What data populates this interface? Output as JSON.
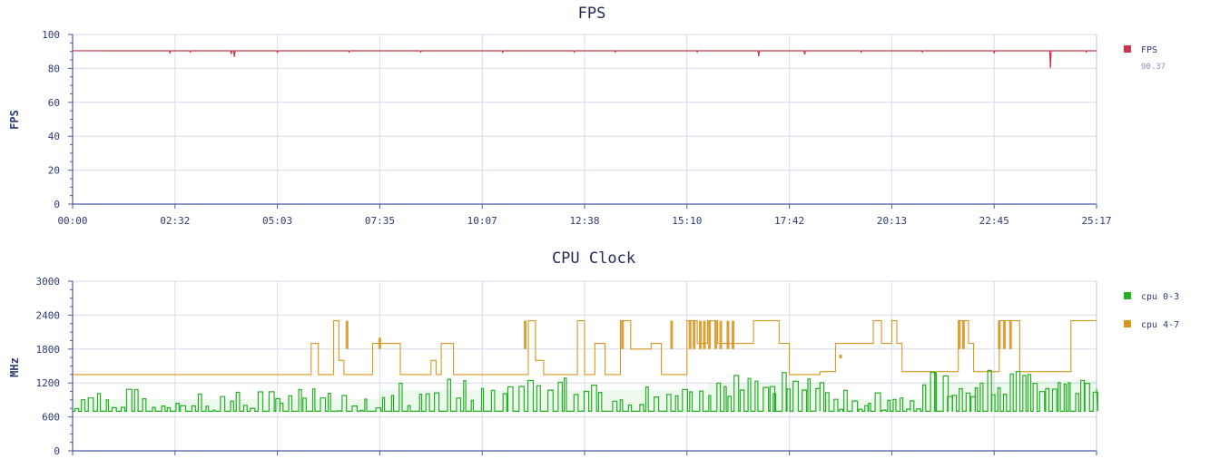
{
  "chart_data": [
    {
      "type": "line",
      "title": "FPS",
      "xlabel": "",
      "ylabel": "FPS",
      "ylim": [
        0,
        100
      ],
      "yticks": [
        0,
        20,
        40,
        60,
        80,
        100
      ],
      "xticks": [
        "00:00",
        "02:32",
        "05:03",
        "07:35",
        "10:07",
        "12:38",
        "15:10",
        "17:42",
        "20:13",
        "22:45",
        "25:17"
      ],
      "grid": true,
      "legend_position": "right",
      "series": [
        {
          "name": "FPS",
          "color": "#c8364a",
          "legend_value": "90.37",
          "baseline": 90.4,
          "dips": [
            [
              0.095,
              89.2
            ],
            [
              0.115,
              89.6
            ],
            [
              0.155,
              88.5
            ],
            [
              0.158,
              86.8
            ],
            [
              0.2,
              89.4
            ],
            [
              0.27,
              89.6
            ],
            [
              0.34,
              89.7
            ],
            [
              0.42,
              89.5
            ],
            [
              0.49,
              89.6
            ],
            [
              0.53,
              89.6
            ],
            [
              0.61,
              89.7
            ],
            [
              0.67,
              87.2
            ],
            [
              0.715,
              88.2
            ],
            [
              0.77,
              89.6
            ],
            [
              0.83,
              89.6
            ],
            [
              0.9,
              89.3
            ],
            [
              0.955,
              80.2
            ],
            [
              0.99,
              89.7
            ]
          ]
        }
      ]
    },
    {
      "type": "line",
      "title": "CPU Clock",
      "xlabel": "",
      "ylabel": "MHz",
      "ylim": [
        0,
        3000
      ],
      "yticks": [
        0,
        600,
        1200,
        1800,
        2400,
        3000
      ],
      "grid": true,
      "legend_position": "right",
      "series": [
        {
          "name": "cpu 0-3",
          "color": "#23b023",
          "base": 700,
          "segments": [
            [
              0.0,
              0.3,
              700,
              1100,
              40
            ],
            [
              0.3,
              0.62,
              800,
              1300,
              36
            ],
            [
              0.62,
              0.735,
              950,
              1400,
              18
            ],
            [
              0.735,
              0.83,
              700,
              1100,
              16
            ],
            [
              0.83,
              0.92,
              950,
              1450,
              16
            ],
            [
              0.92,
              1.0,
              1000,
              1450,
              14
            ]
          ]
        },
        {
          "name": "cpu 4-7",
          "color": "#d9961e",
          "steps": [
            [
              0.0,
              1350
            ],
            [
              0.23,
              1350
            ],
            [
              0.233,
              1900
            ],
            [
              0.24,
              1350
            ],
            [
              0.255,
              2300
            ],
            [
              0.26,
              1600
            ],
            [
              0.265,
              1350
            ],
            [
              0.29,
              1350
            ],
            [
              0.293,
              1900
            ],
            [
              0.315,
              1900
            ],
            [
              0.32,
              1350
            ],
            [
              0.345,
              1350
            ],
            [
              0.35,
              1600
            ],
            [
              0.355,
              1350
            ],
            [
              0.36,
              1900
            ],
            [
              0.372,
              1350
            ],
            [
              0.44,
              1350
            ],
            [
              0.445,
              2300
            ],
            [
              0.452,
              1600
            ],
            [
              0.46,
              1350
            ],
            [
              0.49,
              1350
            ],
            [
              0.493,
              2300
            ],
            [
              0.5,
              1350
            ],
            [
              0.51,
              1900
            ],
            [
              0.52,
              1350
            ],
            [
              0.53,
              1350
            ],
            [
              0.535,
              2300
            ],
            [
              0.545,
              1800
            ],
            [
              0.565,
              1900
            ],
            [
              0.575,
              1350
            ],
            [
              0.6,
              1350
            ],
            [
              0.6,
              2300
            ],
            [
              0.61,
              1900
            ],
            [
              0.62,
              2300
            ],
            [
              0.63,
              1900
            ],
            [
              0.66,
              1900
            ],
            [
              0.665,
              2300
            ],
            [
              0.69,
              1900
            ],
            [
              0.7,
              1350
            ],
            [
              0.725,
              1350
            ],
            [
              0.73,
              1400
            ],
            [
              0.745,
              1400
            ],
            [
              0.745,
              1900
            ],
            [
              0.78,
              1900
            ],
            [
              0.782,
              2300
            ],
            [
              0.79,
              1900
            ],
            [
              0.8,
              2300
            ],
            [
              0.805,
              1900
            ],
            [
              0.81,
              1400
            ],
            [
              0.86,
              1400
            ],
            [
              0.865,
              2300
            ],
            [
              0.875,
              1900
            ],
            [
              0.88,
              1400
            ],
            [
              0.9,
              1400
            ],
            [
              0.905,
              2300
            ],
            [
              0.92,
              2300
            ],
            [
              0.925,
              1400
            ],
            [
              0.97,
              1400
            ],
            [
              0.975,
              2300
            ],
            [
              1.0,
              2300
            ]
          ],
          "spikes": [
            [
              0.268,
              2300
            ],
            [
              0.3,
              2000
            ],
            [
              0.442,
              2300
            ],
            [
              0.537,
              2300
            ],
            [
              0.585,
              2300
            ],
            [
              0.603,
              2300
            ],
            [
              0.607,
              2300
            ],
            [
              0.613,
              2300
            ],
            [
              0.617,
              2300
            ],
            [
              0.622,
              2300
            ],
            [
              0.628,
              2300
            ],
            [
              0.633,
              2300
            ],
            [
              0.64,
              2300
            ],
            [
              0.645,
              2300
            ],
            [
              0.75,
              1700
            ],
            [
              0.866,
              2300
            ],
            [
              0.87,
              2300
            ],
            [
              0.905,
              2300
            ],
            [
              0.91,
              2300
            ],
            [
              0.916,
              2300
            ]
          ]
        }
      ]
    }
  ]
}
